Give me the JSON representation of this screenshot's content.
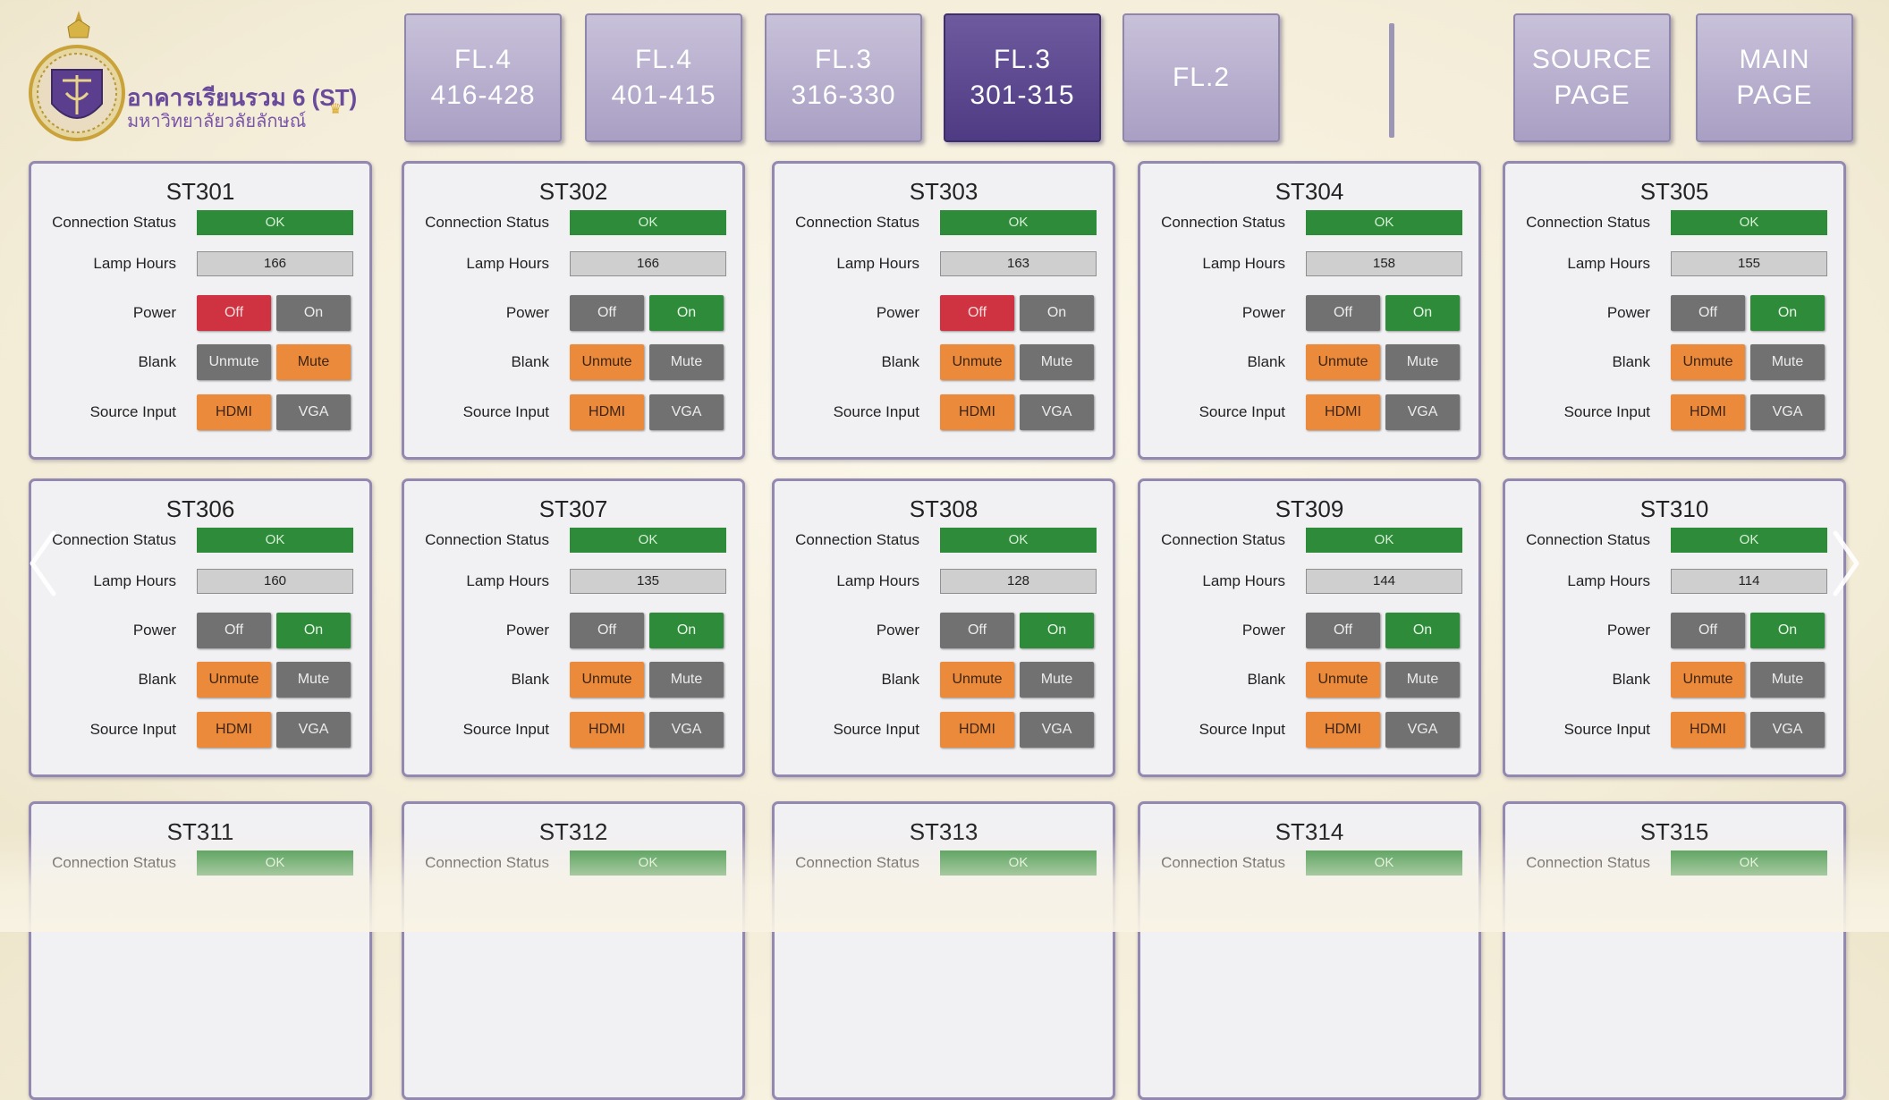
{
  "header": {
    "building_name": "อาคารเรียนรวม 6 (ST)",
    "university_name": "มหาวิทยาลัยวลัยลักษณ์"
  },
  "nav": [
    {
      "line1": "FL.4",
      "line2": "416-428"
    },
    {
      "line1": "FL.4",
      "line2": "401-415"
    },
    {
      "line1": "FL.3",
      "line2": "316-330"
    },
    {
      "line1": "FL.3",
      "line2": "301-315",
      "active": true
    },
    {
      "line1": "FL.2",
      "line2": ""
    },
    {
      "line1": "SOURCE",
      "line2": "PAGE"
    },
    {
      "line1": "MAIN",
      "line2": "PAGE"
    }
  ],
  "labels": {
    "connection_status": "Connection Status",
    "lamp_hours": "Lamp Hours",
    "power": "Power",
    "blank": "Blank",
    "source_input": "Source Input"
  },
  "buttons": {
    "off": "Off",
    "on": "On",
    "unmute": "Unmute",
    "mute": "Mute",
    "hdmi": "HDMI",
    "vga": "VGA"
  },
  "colors": {
    "ok_green": "#2e8b3a",
    "off_red": "#cf3341",
    "selected_orange": "#ec8a3c",
    "inactive_gray": "#717171",
    "active_nav_purple": "#5a468e"
  },
  "rooms": [
    {
      "name": "ST301",
      "status": "OK",
      "lamp_hours": "166",
      "power": "off",
      "blank": "mute",
      "source": "hdmi"
    },
    {
      "name": "ST302",
      "status": "OK",
      "lamp_hours": "166",
      "power": "on",
      "blank": "unmute",
      "source": "hdmi"
    },
    {
      "name": "ST303",
      "status": "OK",
      "lamp_hours": "163",
      "power": "off",
      "blank": "unmute",
      "source": "hdmi"
    },
    {
      "name": "ST304",
      "status": "OK",
      "lamp_hours": "158",
      "power": "on",
      "blank": "unmute",
      "source": "hdmi"
    },
    {
      "name": "ST305",
      "status": "OK",
      "lamp_hours": "155",
      "power": "on",
      "blank": "unmute",
      "source": "hdmi"
    },
    {
      "name": "ST306",
      "status": "OK",
      "lamp_hours": "160",
      "power": "on",
      "blank": "unmute",
      "source": "hdmi"
    },
    {
      "name": "ST307",
      "status": "OK",
      "lamp_hours": "135",
      "power": "on",
      "blank": "unmute",
      "source": "hdmi"
    },
    {
      "name": "ST308",
      "status": "OK",
      "lamp_hours": "128",
      "power": "on",
      "blank": "unmute",
      "source": "hdmi"
    },
    {
      "name": "ST309",
      "status": "OK",
      "lamp_hours": "144",
      "power": "on",
      "blank": "unmute",
      "source": "hdmi"
    },
    {
      "name": "ST310",
      "status": "OK",
      "lamp_hours": "114",
      "power": "on",
      "blank": "unmute",
      "source": "hdmi"
    },
    {
      "name": "ST311",
      "status": "OK"
    },
    {
      "name": "ST312",
      "status": "OK"
    },
    {
      "name": "ST313",
      "status": "OK"
    },
    {
      "name": "ST314",
      "status": "OK"
    },
    {
      "name": "ST315",
      "status": "OK"
    }
  ]
}
